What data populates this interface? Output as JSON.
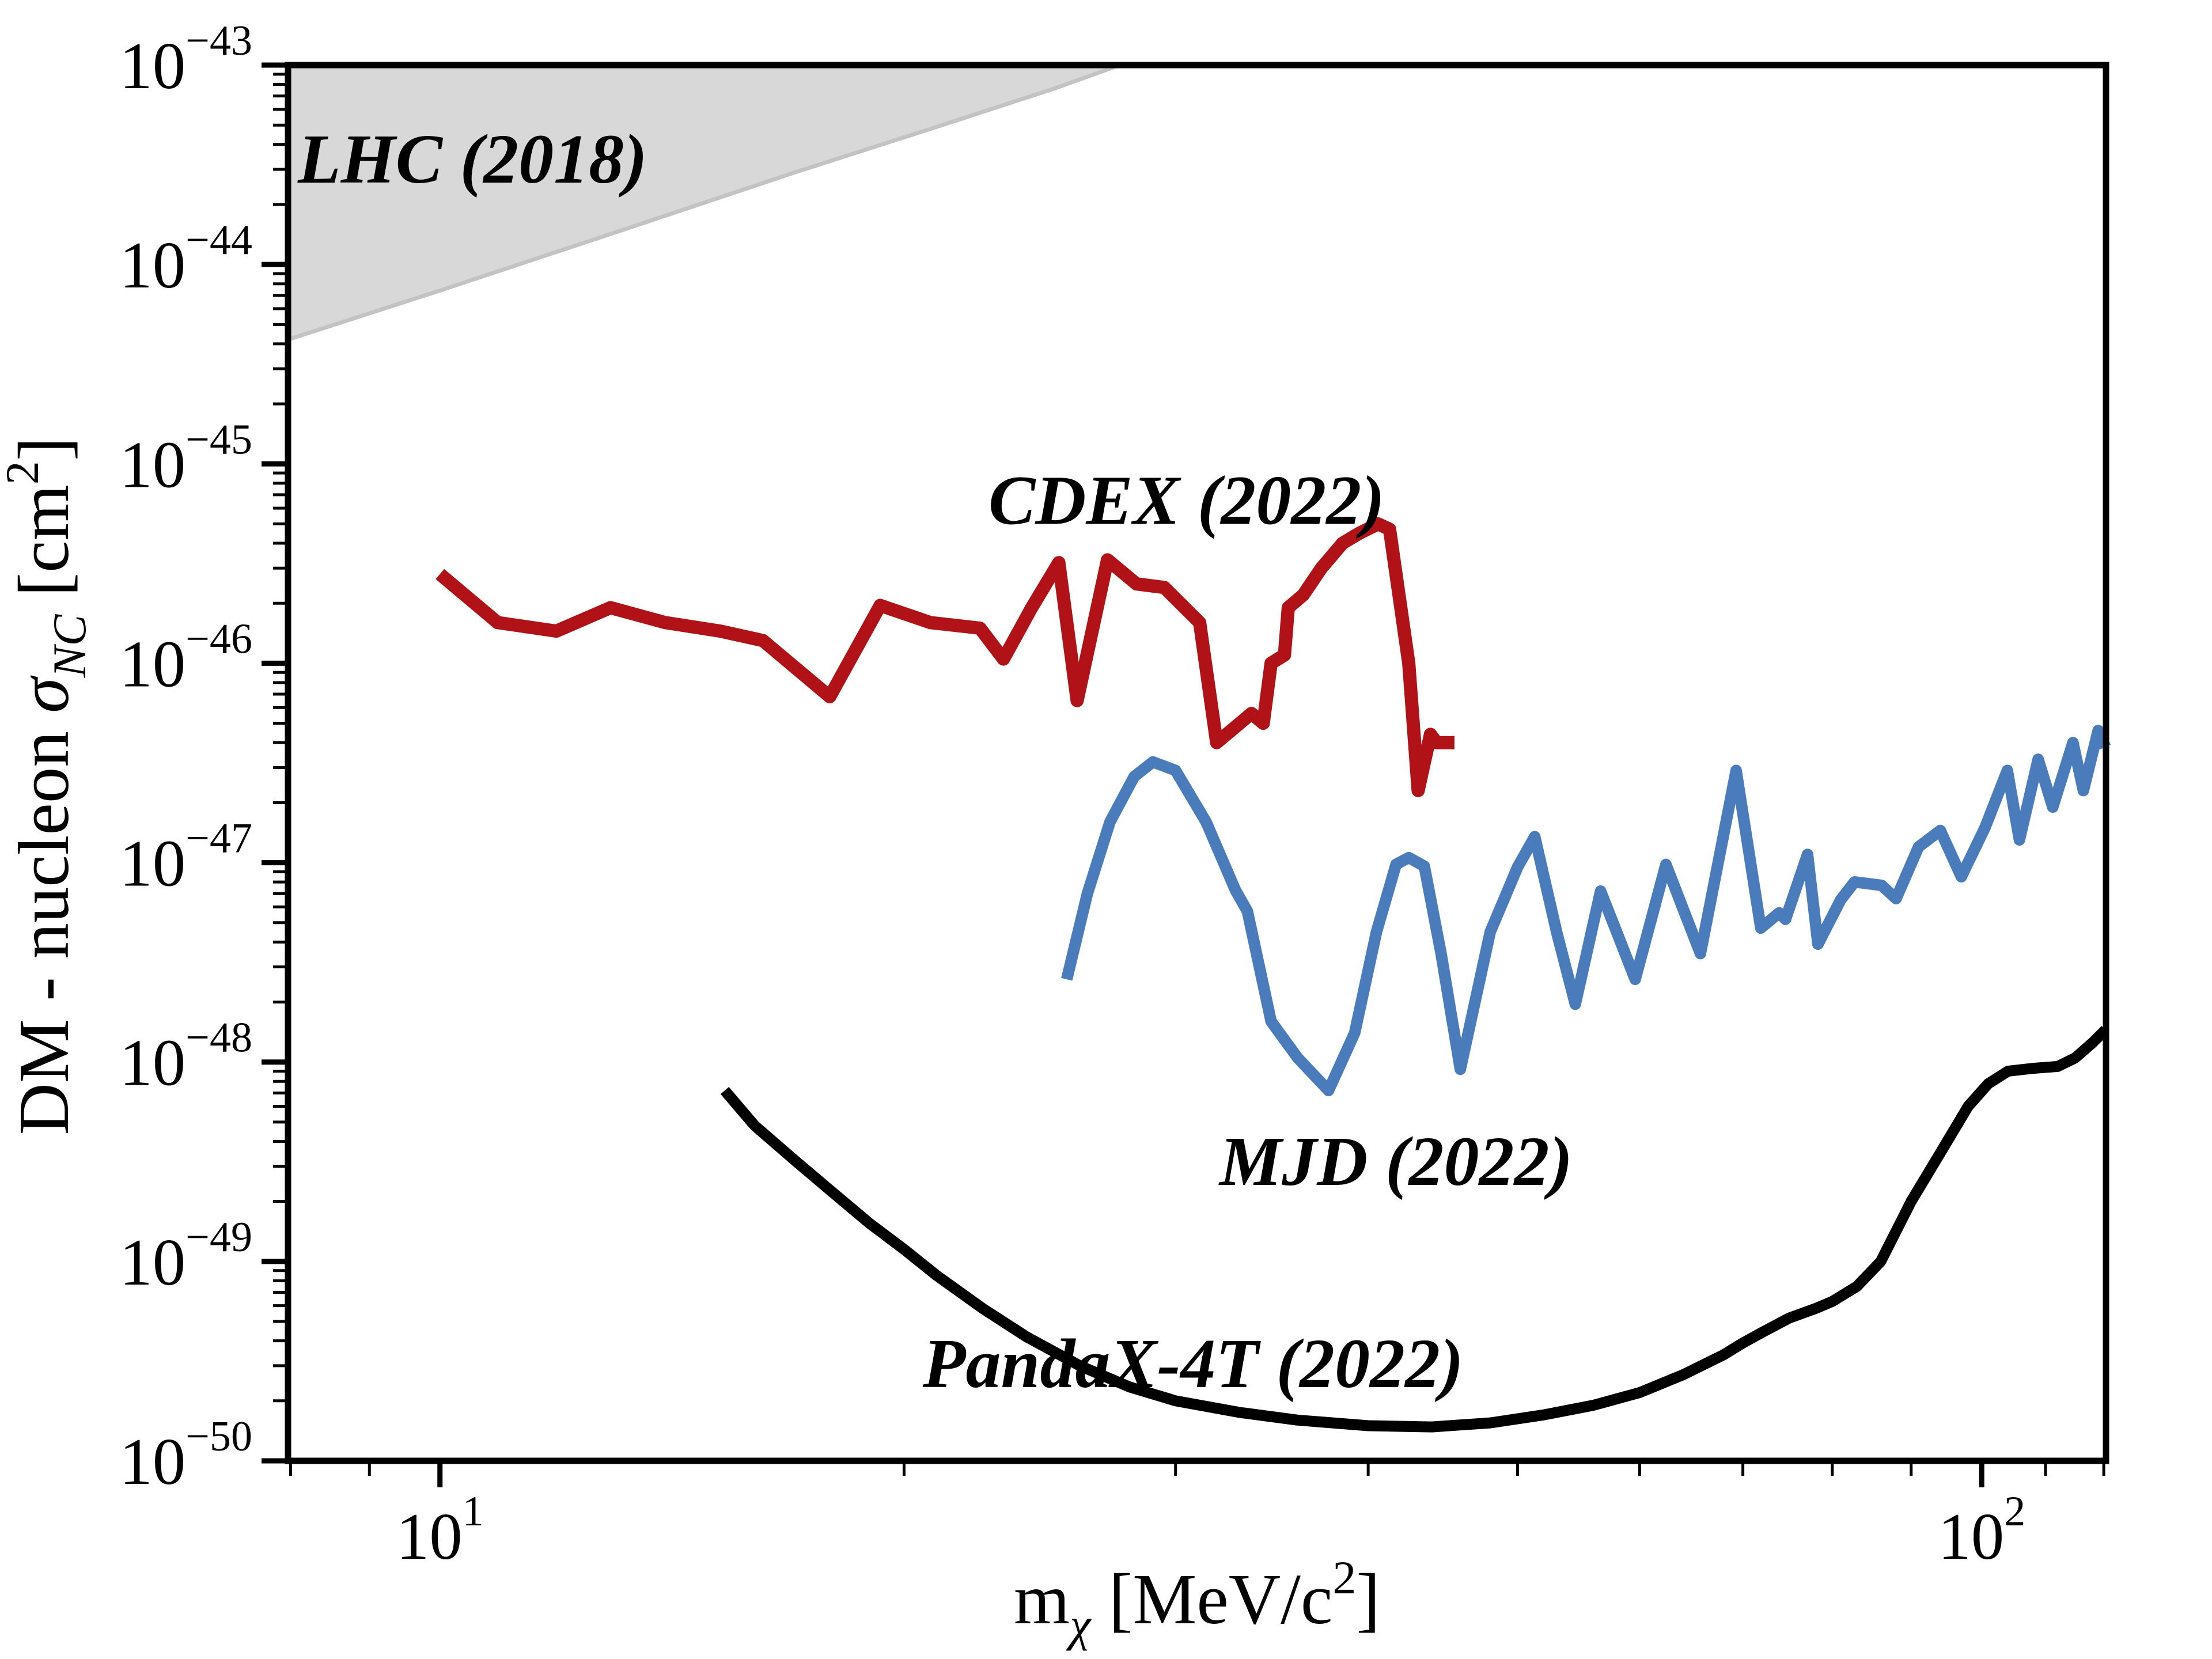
{
  "chart_data": {
    "type": "line",
    "title": "",
    "x_axis": {
      "scale": "log",
      "lim": [
        7.97,
        120.4
      ],
      "label_parts": [
        {
          "t": "m"
        },
        {
          "t": "χ",
          "sub": true,
          "italic": true
        },
        {
          "t": " [MeV/c"
        },
        {
          "t": "2",
          "sup": true
        },
        {
          "t": "]"
        }
      ],
      "major_ticks": [
        {
          "value": 10,
          "base": "10",
          "exp": "1"
        },
        {
          "value": 100,
          "base": "10",
          "exp": "2"
        }
      ],
      "minor_ticks": [
        8,
        9,
        20,
        30,
        40,
        50,
        60,
        70,
        80,
        90,
        110,
        120
      ]
    },
    "y_axis": {
      "scale": "log",
      "lim": [
        1e-50,
        1e-43
      ],
      "label_parts": [
        {
          "t": "DM - nucleon "
        },
        {
          "t": "σ",
          "italic": true
        },
        {
          "t": "NC",
          "sub": true,
          "italic": true
        },
        {
          "t": " [cm"
        },
        {
          "t": "2",
          "sup": true
        },
        {
          "t": "]"
        }
      ],
      "major_tick_exponents": [
        -43,
        -44,
        -45,
        -46,
        -47,
        -48,
        -49,
        -50
      ],
      "tick_base": "10"
    },
    "excluded_region": {
      "name": "LHC (2018)",
      "fill": "#d8d8d8",
      "edge": "#c3c3c3",
      "boundary": [
        [
          7.97,
          4.2e-45
        ],
        [
          10,
          7.4e-45
        ],
        [
          13,
          1.45e-44
        ],
        [
          17,
          2.9e-44
        ],
        [
          21,
          4.9e-44
        ],
        [
          25,
          7.6e-44
        ],
        [
          27.6,
          1e-43
        ]
      ]
    },
    "series": [
      {
        "name": "CDEX (2022)",
        "color": "#b11217",
        "points": [
          [
            10,
            2.8e-46
          ],
          [
            10.9,
            1.6e-46
          ],
          [
            11.9,
            1.45e-46
          ],
          [
            12.9,
            1.9e-46
          ],
          [
            14,
            1.6e-46
          ],
          [
            15.2,
            1.45e-46
          ],
          [
            16.2,
            1.3e-46
          ],
          [
            17,
            9.5e-47
          ],
          [
            17.9,
            6.8e-47
          ],
          [
            19.3,
            1.95e-46
          ],
          [
            20.8,
            1.6e-46
          ],
          [
            22.4,
            1.5e-46
          ],
          [
            23.2,
            1.05e-46
          ],
          [
            24.2,
            1.9e-46
          ],
          [
            25.2,
            3.2e-46
          ],
          [
            25.9,
            6.5e-47
          ],
          [
            27.1,
            3.3e-46
          ],
          [
            28.3,
            2.5e-46
          ],
          [
            29.5,
            2.4e-46
          ],
          [
            31.1,
            1.6e-46
          ],
          [
            31.9,
            4e-47
          ],
          [
            33.6,
            5.6e-47
          ],
          [
            34.2,
            5e-47
          ],
          [
            34.6,
            1e-46
          ],
          [
            35.3,
            1.1e-46
          ],
          [
            35.5,
            1.9e-46
          ],
          [
            36.3,
            2.2e-46
          ],
          [
            37.3,
            3e-46
          ],
          [
            38.5,
            4e-46
          ],
          [
            39.5,
            4.5e-46
          ],
          [
            40.6,
            5e-46
          ],
          [
            41.3,
            4.7e-46
          ],
          [
            42.5,
            1e-46
          ],
          [
            43.1,
            2.3e-47
          ],
          [
            43.9,
            4.4e-47
          ],
          [
            44.3,
            4e-47
          ],
          [
            45.5,
            4e-47
          ]
        ]
      },
      {
        "name": "MJD (2022)",
        "color": "#4a7cbc",
        "points": [
          [
            25.5,
            2.6e-48
          ],
          [
            26.3,
            7e-48
          ],
          [
            27.2,
            1.6e-47
          ],
          [
            28.2,
            2.7e-47
          ],
          [
            29,
            3.2e-47
          ],
          [
            30,
            2.9e-47
          ],
          [
            31.4,
            1.6e-47
          ],
          [
            32.8,
            7.3e-48
          ],
          [
            33.4,
            5.7e-48
          ],
          [
            34.6,
            1.6e-48
          ],
          [
            36,
            1.05e-48
          ],
          [
            37.7,
            7.2e-49
          ],
          [
            39.2,
            1.4e-48
          ],
          [
            40.5,
            4.5e-48
          ],
          [
            41.7,
            9.8e-48
          ],
          [
            42.5,
            1.06e-47
          ],
          [
            43.5,
            9.6e-48
          ],
          [
            44.6,
            3.5e-48
          ],
          [
            45.9,
            9.2e-49
          ],
          [
            48,
            4.5e-48
          ],
          [
            50,
            9.5e-48
          ],
          [
            51.3,
            1.35e-47
          ],
          [
            53,
            4.5e-48
          ],
          [
            54.5,
            1.95e-48
          ],
          [
            56.6,
            7.2e-48
          ],
          [
            57.6,
            5.1e-48
          ],
          [
            59.6,
            2.6e-48
          ],
          [
            62.4,
            9.8e-48
          ],
          [
            65.7,
            3.5e-48
          ],
          [
            69.3,
            2.9e-47
          ],
          [
            71.9,
            4.7e-48
          ],
          [
            73.9,
            5.6e-48
          ],
          [
            74.6,
            5.2e-48
          ],
          [
            77.1,
            1.1e-47
          ],
          [
            78.3,
            3.9e-48
          ],
          [
            81,
            6.5e-48
          ],
          [
            82.7,
            8e-48
          ],
          [
            86.1,
            7.7e-48
          ],
          [
            88,
            6.6e-48
          ],
          [
            91,
            1.2e-47
          ],
          [
            94,
            1.45e-47
          ],
          [
            97,
            8.5e-48
          ],
          [
            100.5,
            1.5e-47
          ],
          [
            103.9,
            2.9e-47
          ],
          [
            105.8,
            1.3e-47
          ],
          [
            108.8,
            3.3e-47
          ],
          [
            111.2,
            1.9e-47
          ],
          [
            114.6,
            4e-47
          ],
          [
            116.4,
            2.3e-47
          ],
          [
            119,
            4.6e-47
          ],
          [
            120.3,
            3.8e-47
          ]
        ]
      },
      {
        "name": "PandaX-4T (2022)",
        "color": "#000000",
        "points": [
          [
            15.3,
            7.2e-49
          ],
          [
            16,
            4.8e-49
          ],
          [
            17,
            3.2e-49
          ],
          [
            18,
            2.2e-49
          ],
          [
            19,
            1.55e-49
          ],
          [
            20,
            1.15e-49
          ],
          [
            21,
            8.5e-50
          ],
          [
            22.5,
            5.8e-50
          ],
          [
            24,
            4.2e-50
          ],
          [
            26,
            3e-50
          ],
          [
            28,
            2.35e-50
          ],
          [
            30,
            2e-50
          ],
          [
            33,
            1.75e-50
          ],
          [
            36,
            1.6e-50
          ],
          [
            40,
            1.5e-50
          ],
          [
            44,
            1.48e-50
          ],
          [
            48,
            1.55e-50
          ],
          [
            52,
            1.7e-50
          ],
          [
            56,
            1.9e-50
          ],
          [
            60,
            2.2e-50
          ],
          [
            64,
            2.7e-50
          ],
          [
            68,
            3.4e-50
          ],
          [
            70,
            3.9e-50
          ],
          [
            72,
            4.4e-50
          ],
          [
            75,
            5.2e-50
          ],
          [
            78,
            5.8e-50
          ],
          [
            80,
            6.3e-50
          ],
          [
            83,
            7.5e-50
          ],
          [
            86,
            1e-49
          ],
          [
            90,
            2e-49
          ],
          [
            94,
            3.5e-49
          ],
          [
            98,
            6e-49
          ],
          [
            101,
            7.8e-49
          ],
          [
            104,
            9e-49
          ],
          [
            108,
            9.3e-49
          ],
          [
            112,
            9.5e-49
          ],
          [
            115,
            1.05e-48
          ],
          [
            118,
            1.25e-48
          ],
          [
            120.3,
            1.45e-48
          ]
        ]
      }
    ],
    "annotations": [
      {
        "text": "LHC (2018)",
        "color": "#000000",
        "x": 10.5,
        "y": 3.4e-44
      },
      {
        "text": "CDEX (2022)",
        "color": "#b11217",
        "x": 30.5,
        "y": 6.6e-46
      },
      {
        "text": "MJD (2022)",
        "color": "#4a7cbc",
        "x": 41.7,
        "y": 3.2e-49
      },
      {
        "text": "PandaX-4T (2022)",
        "color": "#000000",
        "x": 30.8,
        "y": 3.1e-50
      }
    ],
    "legend": {
      "visible": false
    },
    "grid": false
  }
}
